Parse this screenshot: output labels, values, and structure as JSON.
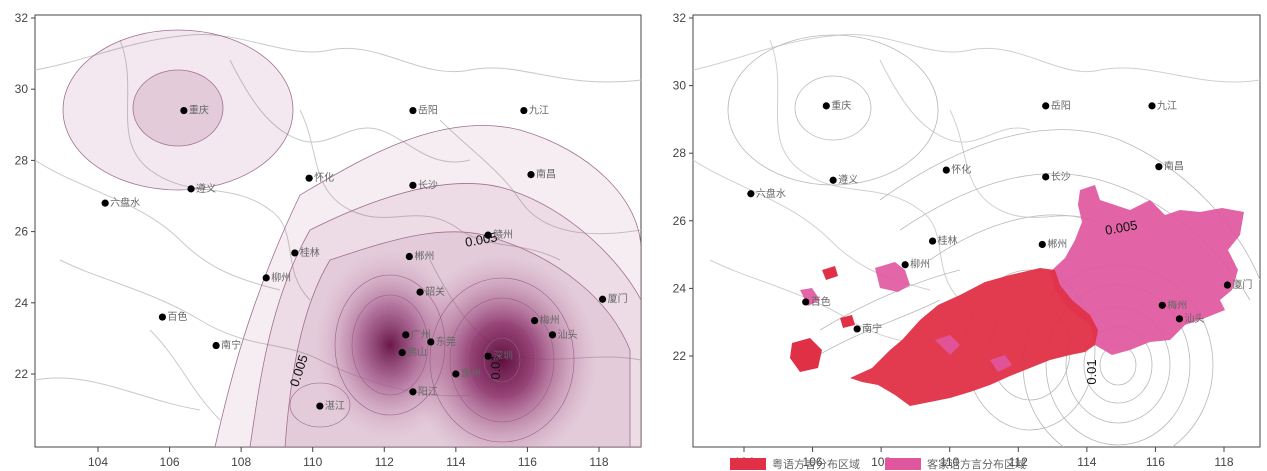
{
  "maps": [
    {
      "name": "influence-density",
      "x_ticks": [
        "104",
        "106",
        "108",
        "110",
        "112",
        "114",
        "116",
        "118"
      ],
      "y_ticks": [
        "32",
        "30",
        "28",
        "26",
        "24",
        "22"
      ],
      "iso_labels": [
        "0.005",
        "0.005",
        "0.01"
      ],
      "cities": [
        {
          "name": "重庆",
          "lon": 106.4,
          "lat": 29.4
        },
        {
          "name": "遵义",
          "lon": 106.6,
          "lat": 27.2
        },
        {
          "name": "六盘水",
          "lon": 104.2,
          "lat": 26.8
        },
        {
          "name": "怀化",
          "lon": 109.9,
          "lat": 27.5
        },
        {
          "name": "岳阳",
          "lon": 112.8,
          "lat": 29.4
        },
        {
          "name": "长沙",
          "lon": 112.8,
          "lat": 27.3
        },
        {
          "name": "九江",
          "lon": 115.9,
          "lat": 29.4
        },
        {
          "name": "南昌",
          "lon": 116.1,
          "lat": 27.6
        },
        {
          "name": "赣州",
          "lon": 114.9,
          "lat": 25.9
        },
        {
          "name": "郴州",
          "lon": 112.7,
          "lat": 25.3
        },
        {
          "name": "桂林",
          "lon": 109.5,
          "lat": 25.4
        },
        {
          "name": "柳州",
          "lon": 108.7,
          "lat": 24.7
        },
        {
          "name": "韶关",
          "lon": 113.0,
          "lat": 24.3
        },
        {
          "name": "百色",
          "lon": 105.8,
          "lat": 23.6
        },
        {
          "name": "南宁",
          "lon": 107.3,
          "lat": 22.8
        },
        {
          "name": "广州",
          "lon": 112.6,
          "lat": 23.1
        },
        {
          "name": "佛山",
          "lon": 112.5,
          "lat": 22.6
        },
        {
          "name": "东莞",
          "lon": 113.3,
          "lat": 22.9
        },
        {
          "name": "惠州",
          "lon": 114.0,
          "lat": 22.0
        },
        {
          "name": "深圳",
          "lon": 114.9,
          "lat": 22.5
        },
        {
          "name": "梅州",
          "lon": 116.2,
          "lat": 23.5
        },
        {
          "name": "汕头",
          "lon": 116.7,
          "lat": 23.1
        },
        {
          "name": "湛江",
          "lon": 110.2,
          "lat": 21.1
        },
        {
          "name": "阳江",
          "lon": 112.8,
          "lat": 21.5
        },
        {
          "name": "厦门",
          "lon": 118.1,
          "lat": 24.1
        }
      ]
    },
    {
      "name": "dialect-distribution",
      "x_ticks": [
        "104",
        "106",
        "108",
        "110",
        "112",
        "114",
        "116",
        "118"
      ],
      "y_ticks": [
        "32",
        "30",
        "28",
        "26",
        "24",
        "22"
      ],
      "iso_labels": [
        "0.005",
        "0.01"
      ],
      "cities": [
        {
          "name": "重庆",
          "lon": 106.4,
          "lat": 29.4
        },
        {
          "name": "遵义",
          "lon": 106.6,
          "lat": 27.2
        },
        {
          "name": "六盘水",
          "lon": 104.2,
          "lat": 26.8
        },
        {
          "name": "怀化",
          "lon": 109.9,
          "lat": 27.5
        },
        {
          "name": "岳阳",
          "lon": 112.8,
          "lat": 29.4
        },
        {
          "name": "长沙",
          "lon": 112.8,
          "lat": 27.3
        },
        {
          "name": "九江",
          "lon": 115.9,
          "lat": 29.4
        },
        {
          "name": "南昌",
          "lon": 116.1,
          "lat": 27.6
        },
        {
          "name": "郴州",
          "lon": 112.7,
          "lat": 25.3
        },
        {
          "name": "桂林",
          "lon": 109.5,
          "lat": 25.4
        },
        {
          "name": "柳州",
          "lon": 108.7,
          "lat": 24.7
        },
        {
          "name": "百色",
          "lon": 105.8,
          "lat": 23.6
        },
        {
          "name": "南宁",
          "lon": 107.3,
          "lat": 22.8
        },
        {
          "name": "梅州",
          "lon": 116.2,
          "lat": 23.5
        },
        {
          "name": "汕头",
          "lon": 116.7,
          "lat": 23.1
        },
        {
          "name": "厦门",
          "lon": 118.1,
          "lat": 24.1
        }
      ],
      "legend": [
        {
          "label": "粤语方言分布区域",
          "color": "#e03046"
        },
        {
          "label": "客家话方言分布区域",
          "color": "#e0579e"
        }
      ]
    }
  ],
  "colors": {
    "shade": "#8a1f5e",
    "cantonese": "#e03046",
    "hakka": "#e0579e"
  }
}
